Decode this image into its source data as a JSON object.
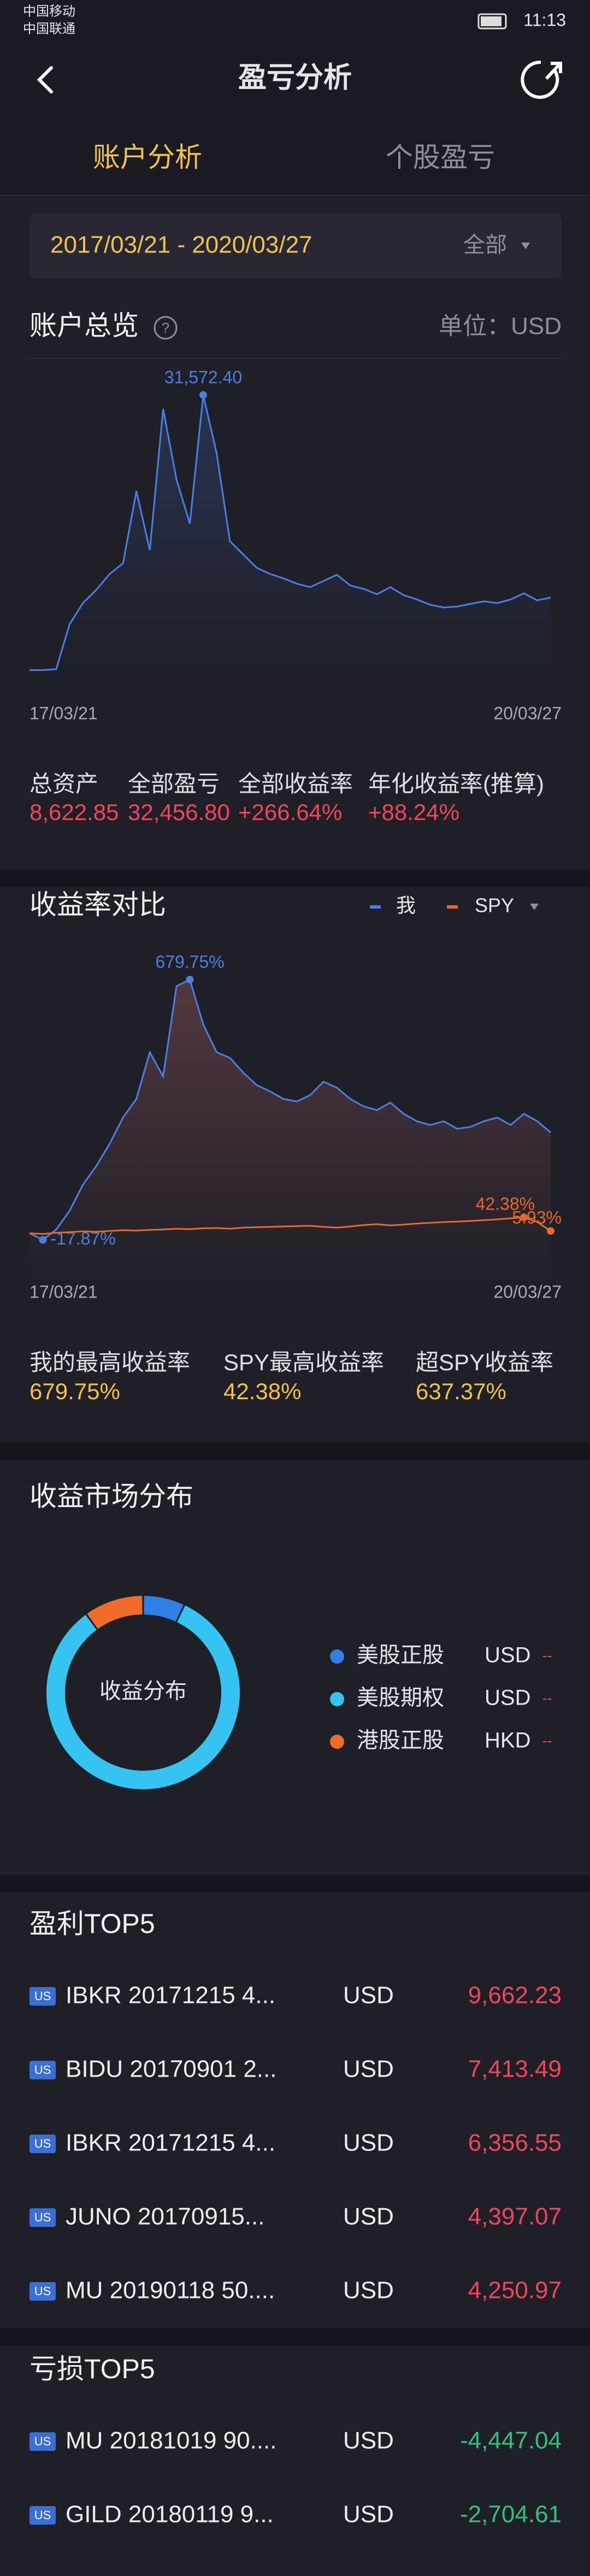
{
  "status_bar": {
    "carrier_1": "中国移动",
    "carrier_2": "中国联通",
    "time": "11:13"
  },
  "nav": {
    "title": "盈亏分析"
  },
  "tabs": [
    "账户分析",
    "个股盈亏"
  ],
  "date_range": {
    "range": "2017/03/21 - 2020/03/27",
    "filter": "全部"
  },
  "overview": {
    "title": "账户总览",
    "unit": "单位：USD",
    "stats": [
      {
        "label": "总资产",
        "value": "8,622.85"
      },
      {
        "label": "全部盈亏",
        "value": "32,456.80"
      },
      {
        "label": "全部收益率",
        "value": "+266.64%"
      },
      {
        "label": "年化收益率(推算)",
        "value": "+88.24%"
      }
    ]
  },
  "comparison": {
    "title": "收益率对比",
    "stats": [
      {
        "label": "我的最高收益率",
        "value": "679.75%"
      },
      {
        "label": "SPY最高收益率",
        "value": "42.38%"
      },
      {
        "label": "超SPY收益率",
        "value": "637.37%"
      }
    ]
  },
  "distribution": {
    "title": "收益市场分布",
    "legend": [
      {
        "currency": "USD",
        "amount": "--"
      },
      {
        "currency": "USD",
        "amount": "--"
      },
      {
        "currency": "HKD",
        "amount": "--"
      }
    ]
  },
  "profit_top5": {
    "title": "盈利TOP5",
    "rows": [
      {
        "badge": "US",
        "name": "IBKR 20171215 4...",
        "currency": "USD",
        "amount": "9,662.23"
      },
      {
        "badge": "US",
        "name": "BIDU 20170901 2...",
        "currency": "USD",
        "amount": "7,413.49"
      },
      {
        "badge": "US",
        "name": "IBKR 20171215 4...",
        "currency": "USD",
        "amount": "6,356.55"
      },
      {
        "badge": "US",
        "name": "JUNO 20170915...",
        "currency": "USD",
        "amount": "4,397.07"
      },
      {
        "badge": "US",
        "name": "MU 20190118 50....",
        "currency": "USD",
        "amount": "4,250.97"
      }
    ]
  },
  "loss_top5": {
    "title": "亏损TOP5",
    "rows": [
      {
        "badge": "US",
        "name": "MU 20181019 90....",
        "currency": "USD",
        "amount": "-4,447.04"
      },
      {
        "badge": "US",
        "name": "GILD 20180119 9...",
        "currency": "USD",
        "amount": "-2,704.61"
      }
    ]
  },
  "chart_data": [
    {
      "type": "line",
      "categories": [
        "17/03/21",
        null,
        null,
        null,
        null,
        null,
        null,
        null,
        null,
        null,
        null,
        null,
        null,
        null,
        null,
        null,
        null,
        null,
        null,
        null,
        null,
        null,
        null,
        null,
        null,
        null,
        null,
        null,
        null,
        null,
        null,
        null,
        null,
        null,
        null,
        null,
        null,
        null,
        null,
        "20/03/27"
      ],
      "series": [
        {
          "color": "#4a7fe6",
          "values": [
            400,
            400,
            500,
            5600,
            8000,
            9500,
            11300,
            12500,
            20700,
            14000,
            30000,
            22000,
            17000,
            31572.4,
            25000,
            15000,
            13500,
            12000,
            11300,
            10800,
            10200,
            9800,
            10500,
            11200,
            10000,
            9600,
            9000,
            9800,
            8900,
            8400,
            7800,
            7500,
            7600,
            7900,
            8200,
            8000,
            8400,
            9100,
            8300,
            8622.85
          ],
          "value_labels": [
            null,
            null,
            null,
            null,
            null,
            null,
            null,
            null,
            null,
            null,
            null,
            null,
            null,
            "31,572.40",
            null,
            null,
            null,
            null,
            null,
            null,
            null,
            null,
            null,
            null,
            null,
            null,
            null,
            null,
            null,
            null,
            null,
            null,
            null,
            null,
            null,
            null,
            null,
            null,
            null,
            null
          ]
        }
      ],
      "ylim": [
        0,
        33000
      ],
      "area_color": "#2b3555"
    },
    {
      "type": "line",
      "categories": [
        "17/03/21",
        null,
        null,
        null,
        null,
        null,
        null,
        null,
        null,
        null,
        null,
        null,
        null,
        null,
        null,
        null,
        null,
        null,
        null,
        null,
        null,
        null,
        null,
        null,
        null,
        null,
        null,
        null,
        null,
        null,
        null,
        null,
        null,
        null,
        null,
        null,
        null,
        null,
        null,
        "20/03/27"
      ],
      "series": [
        {
          "name": "我",
          "color": "#4a7fe6",
          "values": [
            0,
            -17.87,
            10,
            60,
            130,
            180,
            240,
            310,
            360,
            485,
            420,
            662,
            679.75,
            560,
            485,
            470,
            430,
            397,
            380,
            360,
            353,
            370,
            406,
            390,
            360,
            340,
            330,
            350,
            320,
            300,
            290,
            300,
            280,
            285,
            300,
            310,
            290,
            320,
            300,
            270
          ],
          "value_labels": [
            null,
            "-17.87%",
            null,
            null,
            null,
            null,
            null,
            null,
            null,
            null,
            null,
            null,
            "679.75%",
            null,
            null,
            null,
            null,
            null,
            null,
            null,
            null,
            null,
            null,
            null,
            null,
            null,
            null,
            null,
            null,
            null,
            null,
            null,
            null,
            null,
            null,
            null,
            null,
            null,
            null,
            null
          ]
        },
        {
          "name": "SPY",
          "color": "#e8672a",
          "values": [
            0,
            -2,
            1,
            3,
            5,
            4,
            6,
            8,
            7,
            9,
            10,
            12,
            11,
            13,
            14,
            12,
            15,
            16,
            17,
            18,
            19,
            20,
            17,
            15,
            18,
            22,
            24,
            21,
            23,
            26,
            28,
            30,
            31,
            33,
            35,
            37,
            40,
            42.38,
            30,
            5.93
          ],
          "value_labels": [
            null,
            null,
            null,
            null,
            null,
            null,
            null,
            null,
            null,
            null,
            null,
            null,
            null,
            null,
            null,
            null,
            null,
            null,
            null,
            null,
            null,
            null,
            null,
            null,
            null,
            null,
            null,
            null,
            null,
            null,
            null,
            null,
            null,
            null,
            null,
            null,
            null,
            "42.38%",
            null,
            "5.93%"
          ]
        }
      ],
      "ylim": [
        -130,
        750
      ],
      "area_color": "#5a3a42"
    },
    {
      "type": "pie",
      "center_label": "收益分布",
      "categories": [
        "美股正股",
        "美股期权",
        "港股正股"
      ],
      "values": [
        7,
        83,
        10
      ],
      "colors": [
        "#2f80e6",
        "#35c4f2",
        "#f06a2a"
      ]
    }
  ]
}
